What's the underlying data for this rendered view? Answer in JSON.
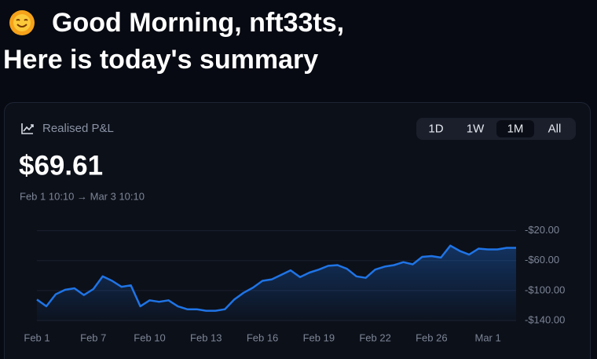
{
  "header": {
    "greeting": "Good Morning, nft33ts,",
    "subtitle": "Here is today's summary"
  },
  "card": {
    "label": "Realised P&L",
    "value": "$69.61",
    "range": "Feb 1 10:10 → Mar 3 10:10",
    "timeframes": [
      "1D",
      "1W",
      "1M",
      "All"
    ],
    "active_timeframe": "1M"
  },
  "chart_data": {
    "type": "line",
    "color": "#1f74e6",
    "grid": true,
    "categories": [
      "Feb 1",
      null,
      null,
      null,
      null,
      null,
      "Feb 7",
      null,
      null,
      null,
      null,
      null,
      "Feb 10",
      null,
      null,
      null,
      null,
      null,
      "Feb 13",
      null,
      null,
      null,
      null,
      null,
      "Feb 16",
      null,
      null,
      null,
      null,
      null,
      "Feb 19",
      null,
      null,
      null,
      null,
      null,
      "Feb 22",
      null,
      null,
      null,
      null,
      null,
      "Feb 26",
      null,
      null,
      null,
      null,
      null,
      "Mar 1",
      null,
      null,
      null
    ],
    "values": [
      -112,
      -121,
      -105,
      -99,
      -97,
      -106,
      -98,
      -81,
      -87,
      -95,
      -93,
      -121,
      -113,
      -115,
      -113,
      -121,
      -125,
      -125,
      -127,
      -127,
      -125,
      -112,
      -103,
      -96,
      -87,
      -85,
      -79,
      -73,
      -82,
      -76,
      -72,
      -67,
      -66,
      -71,
      -81,
      -83,
      -72,
      -68,
      -66,
      -62,
      -65,
      -55,
      -54,
      -56,
      -40,
      -47,
      -52,
      -44,
      -45,
      -45,
      -43,
      -43
    ],
    "ylim": [
      -140,
      -12
    ],
    "yticks": [
      {
        "value": -20,
        "label": "-$20.00"
      },
      {
        "value": -60,
        "label": "-$60.00"
      },
      {
        "value": -100,
        "label": "-$100.00"
      },
      {
        "value": -140,
        "label": "-$140.00"
      }
    ]
  }
}
